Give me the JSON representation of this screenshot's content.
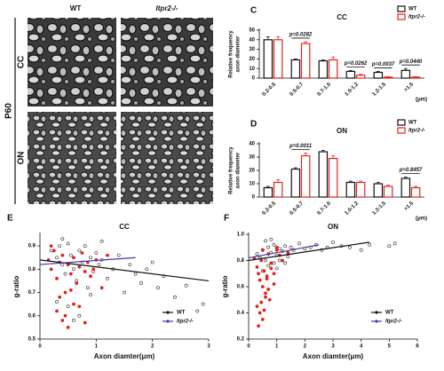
{
  "figure": {
    "header_wt": "WT",
    "header_ko": "Itpr2-/-",
    "age": "P60",
    "row_cc": "CC",
    "row_on": "ON"
  },
  "chart_data": [
    {
      "panel": "C",
      "type": "bar",
      "title": "CC",
      "y_label": [
        "Relative frequency",
        "axon diameter"
      ],
      "x_unit": "(μm)",
      "categories": [
        "0.2-0.5",
        "0.5-0.7",
        "0.7-1.0",
        "1.0-1.2",
        "1.2-1.5",
        ">1.5"
      ],
      "series": [
        {
          "name": "WT",
          "color": "#ffffff",
          "edge": "#111111",
          "italic": false,
          "values": [
            40,
            19,
            18,
            7,
            6,
            8
          ],
          "errors": [
            3,
            1,
            1,
            1,
            1,
            2
          ]
        },
        {
          "name": "Itpr2-/-",
          "color": "#ffffff",
          "edge": "#e3231d",
          "italic": true,
          "values": [
            40,
            36,
            19,
            3,
            1,
            1
          ],
          "errors": [
            3,
            2,
            3,
            1,
            0.5,
            0.5
          ]
        }
      ],
      "ylim": [
        0,
        50
      ],
      "yticks": [
        0,
        10,
        20,
        30,
        40,
        50
      ],
      "legend": "upper right",
      "annotations": [
        "p=0.0282",
        "p=0.0262",
        "p=0.0037",
        "p=0.0440"
      ]
    },
    {
      "panel": "D",
      "type": "bar",
      "title": "ON",
      "y_label": [
        "Relative frequency",
        "axon diameter"
      ],
      "x_unit": "(μm)",
      "categories": [
        "0.2-0.5",
        "0.5-0.7",
        "0.7-1.0",
        "1.0-1.2",
        "1.2-1.5",
        ">1.5"
      ],
      "series": [
        {
          "name": "WT",
          "color": "#ffffff",
          "edge": "#111111",
          "italic": false,
          "values": [
            7,
            21,
            34,
            11,
            10,
            14
          ],
          "errors": [
            1,
            1,
            1,
            1,
            1,
            1
          ]
        },
        {
          "name": "Itpr2-/-",
          "color": "#ffffff",
          "edge": "#e3231d",
          "italic": true,
          "values": [
            11,
            31,
            29,
            11,
            8,
            7
          ],
          "errors": [
            2,
            2,
            2,
            1,
            1,
            1
          ]
        }
      ],
      "ylim": [
        0,
        40
      ],
      "yticks": [
        0,
        10,
        20,
        30,
        40
      ],
      "legend": "upper right",
      "annotations": [
        "p=0.0011",
        "p=0.8457"
      ]
    },
    {
      "panel": "E",
      "type": "scatter",
      "title": "CC",
      "x_label": "Axon diamter(μm)",
      "y_label": "g-ratio",
      "xlim": [
        0,
        3
      ],
      "xticks": [
        0,
        1,
        2,
        3
      ],
      "ylim": [
        0.5,
        0.95
      ],
      "yticks": [
        0.5,
        0.6,
        0.7,
        0.8,
        0.9
      ],
      "legend": "lower right",
      "series": [
        {
          "name": "WT",
          "color": "#222222",
          "marker": "open",
          "line_color": "#111111",
          "italic": false,
          "x": [
            0.2,
            0.3,
            0.35,
            0.4,
            0.45,
            0.5,
            0.55,
            0.6,
            0.65,
            0.7,
            0.75,
            0.8,
            0.85,
            0.9,
            0.95,
            1.0,
            1.05,
            1.1,
            1.2,
            1.3,
            1.4,
            1.5,
            1.6,
            1.7,
            1.8,
            1.9,
            2.0,
            2.1,
            2.2,
            2.4,
            2.6,
            2.8,
            0.3,
            0.5,
            0.7,
            0.9,
            1.1,
            0.4,
            0.6,
            2.9
          ],
          "y": [
            0.88,
            0.85,
            0.9,
            0.82,
            0.78,
            0.91,
            0.86,
            0.8,
            0.75,
            0.88,
            0.83,
            0.9,
            0.72,
            0.85,
            0.79,
            0.87,
            0.82,
            0.84,
            0.76,
            0.8,
            0.86,
            0.7,
            0.82,
            0.78,
            0.74,
            0.8,
            0.83,
            0.72,
            0.77,
            0.68,
            0.73,
            0.62,
            0.66,
            0.64,
            0.6,
            0.69,
            0.92,
            0.93,
            0.58,
            0.65
          ],
          "fit": {
            "x": [
              0,
              3
            ],
            "y": [
              0.84,
              0.75
            ]
          }
        },
        {
          "name": "Itpr2-/-",
          "color": "#e3231d",
          "marker": "filled",
          "line_color": "#3b3bb0",
          "italic": true,
          "x": [
            0.15,
            0.2,
            0.25,
            0.3,
            0.35,
            0.4,
            0.45,
            0.5,
            0.55,
            0.6,
            0.65,
            0.7,
            0.75,
            0.8,
            0.85,
            0.9,
            0.95,
            1.0,
            1.1,
            1.2,
            0.3,
            0.4,
            0.5,
            0.6,
            0.2,
            0.35,
            0.45,
            0.7,
            0.55,
            0.8
          ],
          "y": [
            0.84,
            0.8,
            0.88,
            0.76,
            0.83,
            0.86,
            0.7,
            0.82,
            0.78,
            0.85,
            0.74,
            0.81,
            0.87,
            0.79,
            0.83,
            0.77,
            0.8,
            0.84,
            0.72,
            0.86,
            0.62,
            0.58,
            0.55,
            0.65,
            0.9,
            0.68,
            0.6,
            0.64,
            0.71,
            0.57
          ],
          "fit": {
            "x": [
              0,
              1.7
            ],
            "y": [
              0.82,
              0.85
            ]
          }
        }
      ]
    },
    {
      "panel": "F",
      "type": "scatter",
      "title": "ON",
      "x_label": "Axon diamter(μm)",
      "y_label": "g-ratio",
      "xlim": [
        0,
        6
      ],
      "xticks": [
        0,
        1,
        2,
        3,
        4,
        5,
        6
      ],
      "ylim": [
        0.2,
        1.0
      ],
      "yticks": [
        0.2,
        0.4,
        0.6,
        0.8,
        {
          "value": 1,
          "label": "1.0"
        }
      ],
      "legend": "lower right",
      "series": [
        {
          "name": "WT",
          "color": "#222222",
          "marker": "open",
          "line_color": "#111111",
          "italic": false,
          "x": [
            0.3,
            0.4,
            0.5,
            0.6,
            0.7,
            0.8,
            0.9,
            1.0,
            1.1,
            1.2,
            1.3,
            1.4,
            1.5,
            1.6,
            1.8,
            2.0,
            2.2,
            2.4,
            2.6,
            2.8,
            3.0,
            3.3,
            3.6,
            4.0,
            4.3,
            5.0,
            5.2,
            0.5,
            0.7,
            0.9,
            1.1,
            0.6,
            0.8,
            1.0,
            1.3
          ],
          "y": [
            0.85,
            0.82,
            0.88,
            0.8,
            0.9,
            0.86,
            0.92,
            0.84,
            0.89,
            0.87,
            0.91,
            0.83,
            0.9,
            0.88,
            0.93,
            0.89,
            0.9,
            0.92,
            0.88,
            0.9,
            0.94,
            0.91,
            0.9,
            0.88,
            0.92,
            0.91,
            0.93,
            0.72,
            0.76,
            0.78,
            0.8,
            0.95,
            0.96,
            0.74,
            0.78
          ],
          "fit": {
            "x": [
              0,
              4.3
            ],
            "y": [
              0.8,
              0.94
            ]
          }
        },
        {
          "name": "Itpr2-/-",
          "color": "#e3231d",
          "marker": "filled",
          "line_color": "#3b3bb0",
          "italic": true,
          "x": [
            0.2,
            0.3,
            0.35,
            0.4,
            0.45,
            0.5,
            0.55,
            0.6,
            0.65,
            0.7,
            0.75,
            0.8,
            0.9,
            1.0,
            1.1,
            1.2,
            1.4,
            0.3,
            0.4,
            0.5,
            0.6,
            0.7,
            0.35,
            0.45,
            0.55,
            0.65,
            0.8,
            0.9,
            1.0,
            0.5
          ],
          "y": [
            0.82,
            0.75,
            0.7,
            0.65,
            0.8,
            0.6,
            0.72,
            0.55,
            0.68,
            0.85,
            0.5,
            0.78,
            0.62,
            0.88,
            0.84,
            0.8,
            0.86,
            0.45,
            0.4,
            0.35,
            0.52,
            0.58,
            0.3,
            0.48,
            0.42,
            0.66,
            0.74,
            0.7,
            0.9,
            0.88
          ],
          "fit": {
            "x": [
              0,
              2.5
            ],
            "y": [
              0.82,
              0.92
            ]
          }
        }
      ]
    }
  ]
}
